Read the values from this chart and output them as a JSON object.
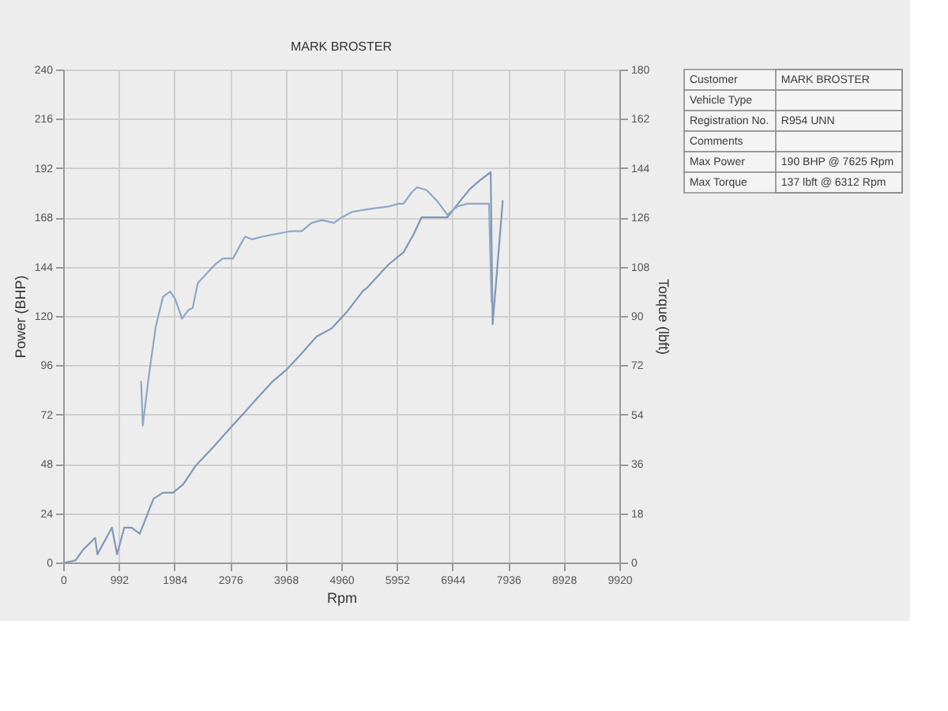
{
  "chart_data": [
    {
      "type": "line",
      "title": "MARK BROSTER",
      "xlabel": "Rpm",
      "ylabel": "Power (BHP)",
      "y2label": "Torque (lbft)",
      "xlim": [
        0,
        9920
      ],
      "xticks": [
        0,
        992,
        1984,
        2976,
        3968,
        4960,
        5952,
        6944,
        7936,
        8928,
        9920
      ],
      "ylim": [
        0,
        240
      ],
      "yticks": [
        0,
        24,
        48,
        72,
        96,
        120,
        144,
        168,
        192,
        216,
        240
      ],
      "y2lim": [
        0,
        180
      ],
      "y2ticks": [
        0,
        18,
        36,
        54,
        72,
        90,
        108,
        126,
        144,
        162,
        180
      ],
      "grid": true,
      "series": [
        {
          "color": "#7f97b8",
          "x": [
            40,
            220,
            350,
            570,
            610,
            870,
            960,
            1090,
            1220,
            1365,
            1610,
            1780,
            1960,
            2140,
            2360,
            2670,
            3030,
            3200,
            3460,
            3730,
            3990,
            4260,
            4520,
            4790,
            5060,
            5340,
            5430,
            5800,
            6070,
            6255,
            6390,
            6620,
            6850,
            7080,
            7260,
            7430,
            7625,
            7660,
            7840
          ],
          "values": [
            0,
            1,
            6,
            12,
            4,
            17,
            4,
            17,
            17,
            14,
            31,
            34,
            34,
            38,
            47,
            56,
            67,
            72,
            80,
            88,
            94,
            102,
            110,
            114,
            122,
            132,
            134,
            145,
            151,
            160,
            168,
            168,
            168,
            176,
            182,
            186,
            190,
            116,
            176
          ]
        },
        {
          "color": "#8ea7c8",
          "axis": "y2",
          "x": [
            1390,
            1420,
            1520,
            1650,
            1780,
            1910,
            2000,
            2120,
            2225,
            2310,
            2400,
            2580,
            2720,
            2850,
            3030,
            3160,
            3245,
            3375,
            3550,
            3810,
            4075,
            4255,
            4430,
            4610,
            4830,
            4970,
            5150,
            5430,
            5800,
            5980,
            6070,
            6210,
            6312,
            6480,
            6670,
            6850,
            7030,
            7210,
            7430,
            7595,
            7640
          ],
          "values": [
            66,
            50,
            67,
            86,
            97,
            99,
            96,
            89,
            92,
            93,
            102,
            106,
            109,
            111,
            111,
            116,
            119,
            118,
            119,
            120,
            121,
            121,
            124,
            125,
            124,
            126,
            128,
            129,
            130,
            131,
            131,
            135,
            137,
            136,
            132,
            127,
            130,
            131,
            131,
            131,
            95
          ]
        }
      ]
    },
    {
      "type": "other",
      "y_categories": [
        "Customer",
        "Vehicle Type",
        "Registration No.",
        "Comments",
        "Max Power",
        "Max Torque"
      ],
      "cell_labels": [
        [
          "MARK BROSTER"
        ],
        [
          null
        ],
        [
          "R954 UNN"
        ],
        [
          null
        ],
        [
          "190 BHP @ 7625 Rpm"
        ],
        [
          "137 lbft @ 6312 Rpm"
        ]
      ]
    }
  ]
}
